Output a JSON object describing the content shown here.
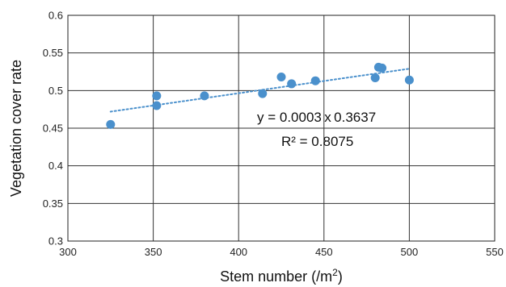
{
  "chart_data": {
    "type": "scatter",
    "title": "",
    "xlabel": "Stem number (/m",
    "xlabel_sup": "2",
    "xlabel_end": ")",
    "ylabel": "Vegetation cover rate",
    "xlim": [
      300,
      550
    ],
    "ylim": [
      0.3,
      0.6
    ],
    "xticks": [
      300,
      350,
      400,
      450,
      500,
      550
    ],
    "yticks": [
      0.3,
      0.35,
      0.4,
      0.45,
      0.5,
      0.55,
      0.6
    ],
    "xtick_labels": [
      "300",
      "350",
      "400",
      "450",
      "500",
      "550"
    ],
    "ytick_labels": [
      "0.3",
      "0.35",
      "0.4",
      "0.45",
      "0.5",
      "0.55",
      "0.6"
    ],
    "grid": true,
    "series": [
      {
        "x": [
          325,
          352,
          352,
          380,
          414,
          425,
          431,
          445,
          480,
          482,
          484,
          500
        ],
        "y": [
          0.455,
          0.48,
          0.493,
          0.493,
          0.496,
          0.518,
          0.509,
          0.513,
          0.517,
          0.531,
          0.53,
          0.514
        ],
        "color": "#4A90CC"
      }
    ],
    "trendline": {
      "x": [
        325,
        500
      ],
      "y": [
        0.472,
        0.529
      ],
      "color": "#4A90CC",
      "style": "dotted"
    },
    "annotations": {
      "equation": "y = 0.0003 x 0.3637",
      "r_squared": "R² = 0.8075"
    }
  }
}
